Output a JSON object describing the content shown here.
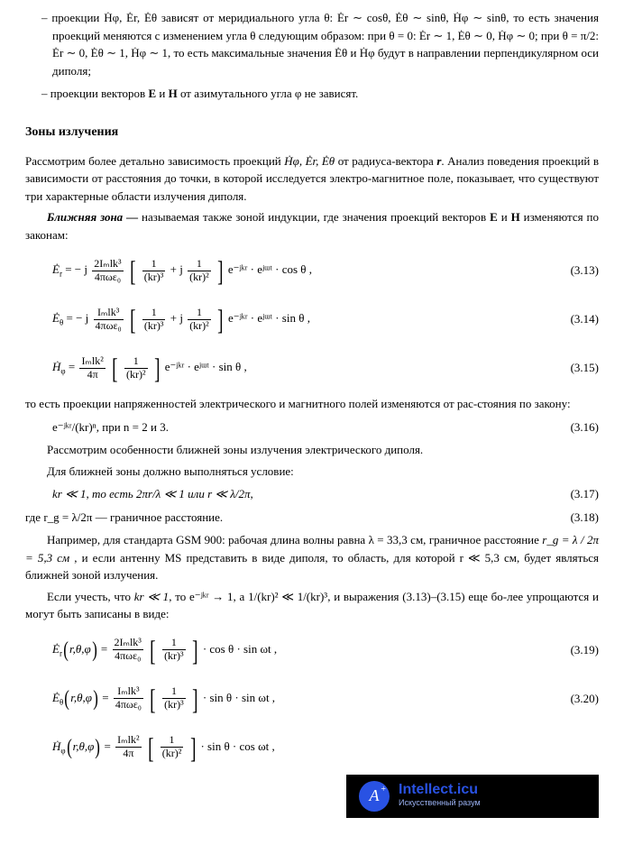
{
  "bullets": {
    "b1": "проекции  Ḣφ, Ėr, Ėθ  зависят от меридиального угла θ:  Ėr ∼ cosθ,  Ėθ ∼ sinθ,  Ḣφ ∼ sinθ, то есть значения проекций меняются с изменением угла θ следующим образом: при θ = 0:  Ėr ∼ 1,  Ėθ ∼ 0,  Ḣφ ∼ 0; при θ = π/2:  Ėr ∼ 0,  Ėθ ∼ 1,  Ḣφ ∼ 1, то есть максимальные значения  Ėθ  и  Ḣφ  будут в направлении перпендикулярном оси диполя;",
    "b2": "проекции векторов E и H от азимутального угла φ не зависят."
  },
  "heading": "Зоны излучения",
  "p1a": "Рассмотрим более детально зависимость проекций  ",
  "p1proj": "Ḣφ, Ėr, Ėθ",
  "p1b": "  от радиуса-вектора ",
  "p1r": "r",
  "p1c": ". Анализ поведения проекций в зависимости от расстояния до точки, в которой исследуется электро-магнитное поле, показывает, что существуют три характерные области излучения диполя.",
  "p2lead": "Ближняя зона — ",
  "p2": "называемая также зоной индукции, где значения проекций векторов ",
  "p2eh": "E и H",
  "p2tail": " изменяются по законам:",
  "eq": {
    "e313_lhs": "Ė",
    "e313_sub": "r",
    "e313_mid1": " = − j ",
    "e313_num1": "2Iₘlk³",
    "e313_den1": "4πωε₀",
    "e313_b_num1": "1",
    "e313_b_den1": "(kr)³",
    "e313_plusj": " + j ",
    "e313_b_num2": "1",
    "e313_b_den2": "(kr)²",
    "e313_tail": " e⁻ʲᵏʳ · eʲᵚᵗ · cos θ ,",
    "e313_num": "(3.13)",
    "e314_lhs": "Ė",
    "e314_sub": "θ",
    "e314_mid1": " = − j ",
    "e314_num1": "Iₘlk³",
    "e314_den1": "4πωε₀",
    "e314_tail": " e⁻ʲᵏʳ · eʲᵚᵗ · sin θ ,",
    "e314_num": "(3.14)",
    "e315_lhs": "Ḣ",
    "e315_sub": "φ",
    "e315_eq": " = ",
    "e315_num1": "Iₘlk²",
    "e315_den1": "4π",
    "e315_b_num": "1",
    "e315_b_den": "(kr)²",
    "e315_tail": " e⁻ʲᵏʳ · eʲᵚᵗ · sin θ ,",
    "e315_num": "(3.15)",
    "e316_body": "e⁻ʲᵏʳ/(kr)ⁿ, при n = 2 и 3.",
    "e316_num": "(3.16)",
    "e317_body": "kr ≪ 1, то есть 2πr/λ ≪ 1 или r ≪ λ/2π,",
    "e317_num": "(3.17)",
    "e318_body": "где r_g = λ/2π — граничное расстояние.",
    "e318_num": "(3.18)",
    "e319_lhs": "Ė",
    "e319_sub": "r",
    "e319_args": " (r,θ,φ) = ",
    "e319_num1": "2Iₘlk³",
    "e319_den1": "4πωε₀",
    "e319_b_num": "1",
    "e319_b_den": "(kr)³",
    "e319_tail": " · cos θ · sin ωt ,",
    "e319_num": "(3.19)",
    "e320_lhs": "Ė",
    "e320_sub": "θ",
    "e320_args": " (r,θ,φ) = ",
    "e320_num1": "Iₘlk³",
    "e320_den1": "4πωε₀",
    "e320_b_num": "1",
    "e320_b_den": "(kr)³",
    "e320_tail": " · sin θ · sin ωt ,",
    "e320_num": "(3.20)",
    "e321_lhs": "Ḣ",
    "e321_sub": "φ",
    "e321_args": " (r,θ,φ) = ",
    "e321_num1": "Iₘlk²",
    "e321_den1": "4π",
    "e321_b_num": "1",
    "e321_b_den": "(kr)²",
    "e321_tail": " · sin θ · cos ωt ,"
  },
  "p3": "то есть проекции напряженностей электрического и магнитного полей изменяются от рас-стояния по закону:",
  "p4": "Рассмотрим особенности ближней зоны излучения электрического диполя.",
  "p5": "Для ближней зоны должно выполняться условие:",
  "p6a": "Например, для стандарта GSM 900: рабочая длина волны равна λ = 33,3 см, граничное расстояние  ",
  "p6i": "r_g = λ / 2π = 5,3 см",
  "p6b": " , и если антенну MS представить в виде диполя, то область, для которой r ≪ 5,3 см, будет являться ближней зоной излучения.",
  "p7a": "Если учесть, что ",
  "p7i1": "kr ≪ 1",
  "p7b": ", то e⁻ʲᵏʳ → 1, а 1/(kr)² ≪ 1/(kr)³, и выражения (3.13)–(3.15) еще бо-лее упрощаются и могут быть записаны в виде:",
  "logo": {
    "letter": "A",
    "plus": "+",
    "title": "Intellect.icu",
    "sub": "Искусственный разум"
  }
}
